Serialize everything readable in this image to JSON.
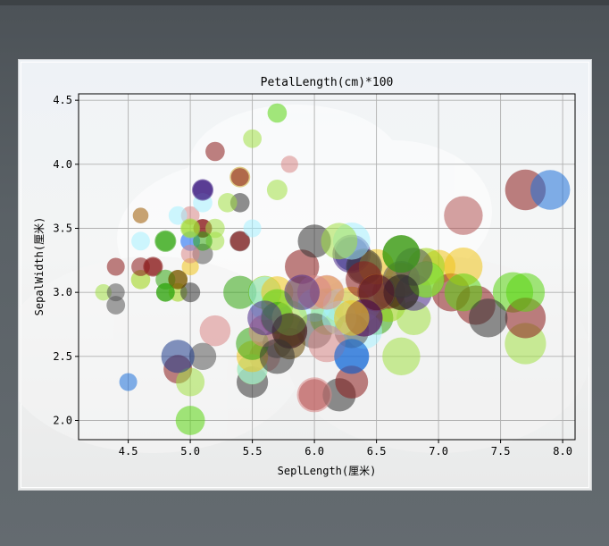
{
  "chart_data": {
    "type": "scatter",
    "title": "PetalLength(cm)*100",
    "xlabel": "SeplLength(厘米)",
    "ylabel": "SepalWidth(厘米)",
    "xlim": [
      4.1,
      8.1
    ],
    "ylim": [
      1.85,
      4.55
    ],
    "xticks": [
      "4.5",
      "5.0",
      "5.5",
      "6.0",
      "6.5",
      "7.0",
      "7.5",
      "8.0"
    ],
    "yticks": [
      "2.0",
      "2.5",
      "3.0",
      "3.5",
      "4.0",
      "4.5"
    ],
    "grid": true,
    "legend": "none",
    "marker_alpha": 0.55,
    "points": [
      {
        "x": 5.1,
        "y": 3.5,
        "s": 14,
        "c": "#8b1a1a"
      },
      {
        "x": 4.9,
        "y": 3.0,
        "s": 14,
        "c": "#9ad30f"
      },
      {
        "x": 4.7,
        "y": 3.2,
        "s": 13,
        "c": "#8b1a1a"
      },
      {
        "x": 4.6,
        "y": 3.1,
        "s": 15,
        "c": "#9ad30f"
      },
      {
        "x": 5.0,
        "y": 3.6,
        "s": 14,
        "c": "#d98787"
      },
      {
        "x": 5.4,
        "y": 3.9,
        "s": 17,
        "c": "#c9a227"
      },
      {
        "x": 4.6,
        "y": 3.4,
        "s": 14,
        "c": "#a6f0ff"
      },
      {
        "x": 5.0,
        "y": 3.4,
        "s": 15,
        "c": "#1e6fd9"
      },
      {
        "x": 4.4,
        "y": 2.9,
        "s": 14,
        "c": "#555555"
      },
      {
        "x": 4.9,
        "y": 3.1,
        "s": 15,
        "c": "#9c7b00"
      },
      {
        "x": 5.4,
        "y": 3.7,
        "s": 15,
        "c": "#333333"
      },
      {
        "x": 4.8,
        "y": 3.4,
        "s": 16,
        "c": "#2eaa11"
      },
      {
        "x": 4.8,
        "y": 3.0,
        "s": 14,
        "c": "#33a611"
      },
      {
        "x": 4.3,
        "y": 3.0,
        "s": 11,
        "c": "#a3e046"
      },
      {
        "x": 5.8,
        "y": 4.0,
        "s": 12,
        "c": "#d98787"
      },
      {
        "x": 5.7,
        "y": 4.4,
        "s": 15,
        "c": "#59d611"
      },
      {
        "x": 5.4,
        "y": 3.9,
        "s": 13,
        "c": "#8b1a1a"
      },
      {
        "x": 5.1,
        "y": 3.5,
        "s": 14,
        "c": "#8b1a1a"
      },
      {
        "x": 5.7,
        "y": 3.8,
        "s": 17,
        "c": "#a3e046"
      },
      {
        "x": 5.1,
        "y": 3.8,
        "s": 15,
        "c": "#4a2a8a"
      },
      {
        "x": 5.4,
        "y": 3.4,
        "s": 17,
        "c": "#5a2a2a"
      },
      {
        "x": 5.1,
        "y": 3.7,
        "s": 15,
        "c": "#a6f0ff"
      },
      {
        "x": 4.6,
        "y": 3.6,
        "s": 10,
        "c": "#9c5a00"
      },
      {
        "x": 5.1,
        "y": 3.3,
        "s": 17,
        "c": "#555555"
      },
      {
        "x": 4.8,
        "y": 3.4,
        "s": 19,
        "c": "#33a611"
      },
      {
        "x": 5.0,
        "y": 3.0,
        "s": 16,
        "c": "#333333"
      },
      {
        "x": 5.0,
        "y": 3.4,
        "s": 16,
        "c": "#6fa0ff"
      },
      {
        "x": 5.2,
        "y": 3.5,
        "s": 15,
        "c": "#a3e046"
      },
      {
        "x": 5.2,
        "y": 3.4,
        "s": 14,
        "c": "#a3e046"
      },
      {
        "x": 4.7,
        "y": 3.2,
        "s": 16,
        "c": "#8b1a1a"
      },
      {
        "x": 4.8,
        "y": 3.1,
        "s": 16,
        "c": "#33a611"
      },
      {
        "x": 5.4,
        "y": 3.4,
        "s": 15,
        "c": "#8b1a1a"
      },
      {
        "x": 5.2,
        "y": 4.1,
        "s": 15,
        "c": "#8b1a1a"
      },
      {
        "x": 5.5,
        "y": 4.2,
        "s": 14,
        "c": "#a3e046"
      },
      {
        "x": 4.9,
        "y": 3.1,
        "s": 15,
        "c": "#6b4a00"
      },
      {
        "x": 5.0,
        "y": 3.2,
        "s": 12,
        "c": "#f0c419"
      },
      {
        "x": 5.5,
        "y": 3.5,
        "s": 13,
        "c": "#a6f0ff"
      },
      {
        "x": 4.9,
        "y": 3.6,
        "s": 14,
        "c": "#a6f0ff"
      },
      {
        "x": 4.4,
        "y": 3.0,
        "s": 13,
        "c": "#555555"
      },
      {
        "x": 5.1,
        "y": 3.4,
        "s": 15,
        "c": "#33a611"
      },
      {
        "x": 5.0,
        "y": 3.5,
        "s": 13,
        "c": "#9ad30f"
      },
      {
        "x": 4.5,
        "y": 2.3,
        "s": 13,
        "c": "#1e6fd9"
      },
      {
        "x": 4.4,
        "y": 3.2,
        "s": 13,
        "c": "#8b1a1a"
      },
      {
        "x": 5.0,
        "y": 3.5,
        "s": 16,
        "c": "#a3e046"
      },
      {
        "x": 5.1,
        "y": 3.8,
        "s": 19,
        "c": "#4a2a8a"
      },
      {
        "x": 4.8,
        "y": 3.0,
        "s": 14,
        "c": "#33a611"
      },
      {
        "x": 5.1,
        "y": 3.8,
        "s": 16,
        "c": "#4a2a8a"
      },
      {
        "x": 4.6,
        "y": 3.2,
        "s": 14,
        "c": "#8b1a1a"
      },
      {
        "x": 5.3,
        "y": 3.7,
        "s": 15,
        "c": "#a3e046"
      },
      {
        "x": 5.0,
        "y": 3.3,
        "s": 14,
        "c": "#d98787"
      },
      {
        "x": 7.0,
        "y": 3.2,
        "s": 47,
        "c": "#f0c419"
      },
      {
        "x": 6.4,
        "y": 3.2,
        "s": 45,
        "c": "#555555"
      },
      {
        "x": 6.9,
        "y": 3.1,
        "s": 49,
        "c": "#a6f0ff"
      },
      {
        "x": 5.5,
        "y": 2.3,
        "s": 40,
        "c": "#333333"
      },
      {
        "x": 6.5,
        "y": 2.8,
        "s": 46,
        "c": "#33a611"
      },
      {
        "x": 5.7,
        "y": 2.8,
        "s": 45,
        "c": "#8b1a1a"
      },
      {
        "x": 6.3,
        "y": 3.3,
        "s": 47,
        "c": "#1e3a8a"
      },
      {
        "x": 4.9,
        "y": 2.4,
        "s": 33,
        "c": "#8b1a1a"
      },
      {
        "x": 6.6,
        "y": 2.9,
        "s": 46,
        "c": "#9ad30f"
      },
      {
        "x": 5.2,
        "y": 2.7,
        "s": 39,
        "c": "#d98787"
      },
      {
        "x": 5.0,
        "y": 2.0,
        "s": 35,
        "c": "#59d611"
      },
      {
        "x": 5.9,
        "y": 3.0,
        "s": 42,
        "c": "#f0c419"
      },
      {
        "x": 6.0,
        "y": 2.2,
        "s": 40,
        "c": "#8b1a1a"
      },
      {
        "x": 6.1,
        "y": 2.9,
        "s": 47,
        "c": "#a3e046"
      },
      {
        "x": 5.6,
        "y": 2.9,
        "s": 36,
        "c": "#a6f0ff"
      },
      {
        "x": 6.7,
        "y": 3.1,
        "s": 44,
        "c": "#c9a227"
      },
      {
        "x": 5.6,
        "y": 3.0,
        "s": 45,
        "c": "#9ad30f"
      },
      {
        "x": 5.8,
        "y": 2.7,
        "s": 41,
        "c": "#6b4a00"
      },
      {
        "x": 6.2,
        "y": 2.2,
        "s": 45,
        "c": "#333333"
      },
      {
        "x": 5.6,
        "y": 2.5,
        "s": 39,
        "c": "#d98787"
      },
      {
        "x": 5.9,
        "y": 3.2,
        "s": 48,
        "c": "#8b1a1a"
      },
      {
        "x": 6.1,
        "y": 2.8,
        "s": 40,
        "c": "#a6f0ff"
      },
      {
        "x": 6.3,
        "y": 2.5,
        "s": 49,
        "c": "#1e6fd9"
      },
      {
        "x": 6.1,
        "y": 2.8,
        "s": 47,
        "c": "#9ad30f"
      },
      {
        "x": 6.4,
        "y": 2.9,
        "s": 43,
        "c": "#a6f0ff"
      },
      {
        "x": 6.6,
        "y": 3.0,
        "s": 44,
        "c": "#8b1a1a"
      },
      {
        "x": 6.8,
        "y": 2.8,
        "s": 48,
        "c": "#a3e046"
      },
      {
        "x": 6.7,
        "y": 3.0,
        "s": 50,
        "c": "#9c7b00"
      },
      {
        "x": 6.0,
        "y": 2.9,
        "s": 45,
        "c": "#a6f0ff"
      },
      {
        "x": 5.7,
        "y": 2.6,
        "s": 35,
        "c": "#555555"
      },
      {
        "x": 5.5,
        "y": 2.4,
        "s": 38,
        "c": "#a3e046"
      },
      {
        "x": 5.5,
        "y": 2.4,
        "s": 37,
        "c": "#a6f0ff"
      },
      {
        "x": 5.8,
        "y": 2.7,
        "s": 39,
        "c": "#9ad30f"
      },
      {
        "x": 6.0,
        "y": 2.7,
        "s": 51,
        "c": "#555555"
      },
      {
        "x": 5.4,
        "y": 3.0,
        "s": 45,
        "c": "#33a611"
      },
      {
        "x": 6.0,
        "y": 3.4,
        "s": 45,
        "c": "#333333"
      },
      {
        "x": 6.7,
        "y": 3.1,
        "s": 47,
        "c": "#f0c419"
      },
      {
        "x": 6.3,
        "y": 2.3,
        "s": 44,
        "c": "#8b1a1a"
      },
      {
        "x": 5.6,
        "y": 3.0,
        "s": 41,
        "c": "#a6f0ff"
      },
      {
        "x": 5.5,
        "y": 2.5,
        "s": 40,
        "c": "#f0c419"
      },
      {
        "x": 5.5,
        "y": 2.6,
        "s": 44,
        "c": "#33a611"
      },
      {
        "x": 6.1,
        "y": 3.0,
        "s": 46,
        "c": "#f0c419"
      },
      {
        "x": 5.8,
        "y": 2.6,
        "s": 40,
        "c": "#6b4a00"
      },
      {
        "x": 5.0,
        "y": 2.3,
        "s": 33,
        "c": "#a3e046"
      },
      {
        "x": 5.6,
        "y": 2.7,
        "s": 42,
        "c": "#d98787"
      },
      {
        "x": 5.7,
        "y": 3.0,
        "s": 42,
        "c": "#f0c419"
      },
      {
        "x": 5.7,
        "y": 2.9,
        "s": 42,
        "c": "#59d611"
      },
      {
        "x": 6.2,
        "y": 2.9,
        "s": 43,
        "c": "#a6f0ff"
      },
      {
        "x": 5.1,
        "y": 2.5,
        "s": 30,
        "c": "#555555"
      },
      {
        "x": 5.7,
        "y": 2.8,
        "s": 41,
        "c": "#33a611"
      },
      {
        "x": 6.3,
        "y": 3.3,
        "s": 60,
        "c": "#4a2a8a"
      },
      {
        "x": 5.8,
        "y": 2.7,
        "s": 51,
        "c": "#8b1a1a"
      },
      {
        "x": 7.1,
        "y": 3.0,
        "s": 59,
        "c": "#8b1a1a"
      },
      {
        "x": 6.3,
        "y": 2.9,
        "s": 56,
        "c": "#f0c419"
      },
      {
        "x": 6.5,
        "y": 3.0,
        "s": 58,
        "c": "#4a2a8a"
      },
      {
        "x": 7.6,
        "y": 3.0,
        "s": 66,
        "c": "#59d611"
      },
      {
        "x": 4.9,
        "y": 2.5,
        "s": 45,
        "c": "#1e3a8a"
      },
      {
        "x": 7.3,
        "y": 2.9,
        "s": 63,
        "c": "#8b1a1a"
      },
      {
        "x": 6.7,
        "y": 2.5,
        "s": 58,
        "c": "#a3e046"
      },
      {
        "x": 7.2,
        "y": 3.6,
        "s": 61,
        "c": "#b35555"
      },
      {
        "x": 6.5,
        "y": 3.2,
        "s": 51,
        "c": "#f0c419"
      },
      {
        "x": 6.4,
        "y": 2.7,
        "s": 53,
        "c": "#a6f0ff"
      },
      {
        "x": 6.8,
        "y": 3.0,
        "s": 55,
        "c": "#4a2a8a"
      },
      {
        "x": 5.7,
        "y": 2.5,
        "s": 50,
        "c": "#333333"
      },
      {
        "x": 5.8,
        "y": 2.8,
        "s": 51,
        "c": "#a3e046"
      },
      {
        "x": 6.4,
        "y": 3.2,
        "s": 53,
        "c": "#333333"
      },
      {
        "x": 6.5,
        "y": 3.0,
        "s": 55,
        "c": "#f0c419"
      },
      {
        "x": 7.7,
        "y": 3.8,
        "s": 67,
        "c": "#8b1a1a"
      },
      {
        "x": 7.7,
        "y": 2.6,
        "s": 69,
        "c": "#a3e046"
      },
      {
        "x": 6.0,
        "y": 2.2,
        "s": 50,
        "c": "#d98787"
      },
      {
        "x": 6.9,
        "y": 3.2,
        "s": 57,
        "c": "#9ad30f"
      },
      {
        "x": 5.6,
        "y": 2.8,
        "s": 49,
        "c": "#4a2a8a"
      },
      {
        "x": 7.7,
        "y": 2.8,
        "s": 67,
        "c": "#8b1a1a"
      },
      {
        "x": 6.3,
        "y": 2.7,
        "s": 49,
        "c": "#555555"
      },
      {
        "x": 6.7,
        "y": 3.3,
        "s": 57,
        "c": "#3a7a00"
      },
      {
        "x": 7.2,
        "y": 3.2,
        "s": 60,
        "c": "#f0c419"
      },
      {
        "x": 6.2,
        "y": 2.8,
        "s": 48,
        "c": "#a6f0ff"
      },
      {
        "x": 6.1,
        "y": 3.0,
        "s": 49,
        "c": "#d98787"
      },
      {
        "x": 6.4,
        "y": 2.8,
        "s": 56,
        "c": "#8b1a1a"
      },
      {
        "x": 7.2,
        "y": 3.0,
        "s": 58,
        "c": "#59d611"
      },
      {
        "x": 7.4,
        "y": 2.8,
        "s": 61,
        "c": "#333333"
      },
      {
        "x": 7.9,
        "y": 3.8,
        "s": 64,
        "c": "#1e6fd9"
      },
      {
        "x": 6.4,
        "y": 2.8,
        "s": 56,
        "c": "#4a2a8a"
      },
      {
        "x": 6.3,
        "y": 2.8,
        "s": 51,
        "c": "#f0c419"
      },
      {
        "x": 6.1,
        "y": 2.6,
        "s": 56,
        "c": "#d98787"
      },
      {
        "x": 7.7,
        "y": 3.0,
        "s": 61,
        "c": "#59d611"
      },
      {
        "x": 6.3,
        "y": 3.4,
        "s": 56,
        "c": "#a6f0ff"
      },
      {
        "x": 6.4,
        "y": 3.1,
        "s": 55,
        "c": "#8b1a1a"
      },
      {
        "x": 6.0,
        "y": 3.0,
        "s": 48,
        "c": "#d98787"
      },
      {
        "x": 6.9,
        "y": 3.1,
        "s": 54,
        "c": "#59d611"
      },
      {
        "x": 6.7,
        "y": 3.1,
        "s": 56,
        "c": "#555555"
      },
      {
        "x": 6.9,
        "y": 3.1,
        "s": 51,
        "c": "#a3e046"
      },
      {
        "x": 5.8,
        "y": 2.7,
        "s": 51,
        "c": "#333333"
      },
      {
        "x": 6.8,
        "y": 3.2,
        "s": 59,
        "c": "#555555"
      },
      {
        "x": 6.7,
        "y": 3.3,
        "s": 57,
        "c": "#33a611"
      },
      {
        "x": 6.7,
        "y": 3.0,
        "s": 52,
        "c": "#1f1f1f"
      },
      {
        "x": 6.3,
        "y": 2.5,
        "s": 50,
        "c": "#1e6fd9"
      },
      {
        "x": 6.5,
        "y": 3.0,
        "s": 52,
        "c": "#4a0a2a"
      },
      {
        "x": 6.2,
        "y": 3.4,
        "s": 54,
        "c": "#a3e046"
      },
      {
        "x": 5.9,
        "y": 3.0,
        "s": 51,
        "c": "#4a2a8a"
      }
    ]
  }
}
